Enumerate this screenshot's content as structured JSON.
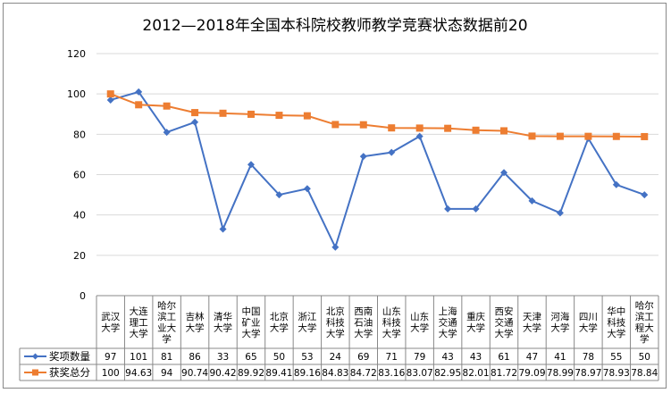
{
  "chart_data": {
    "type": "line",
    "title": "2012—2018年全国本科院校教师教学竞赛状态数据前20",
    "categories": [
      "武汉大学",
      "大连理工大学",
      "哈尔滨工业大学",
      "吉林大学",
      "清华大学",
      "中国矿业大学",
      "北京大学",
      "浙江大学",
      "北京科技大学",
      "西南石油大学",
      "山东科技大学",
      "山东大学",
      "上海交通大学",
      "重庆大学",
      "西安交通大学",
      "天津大学",
      "河海大学",
      "四川大学",
      "华中科技大学",
      "哈尔滨工程大学"
    ],
    "category_lines": [
      [
        "武汉",
        "大学"
      ],
      [
        "大连",
        "理工",
        "大学"
      ],
      [
        "哈尔",
        "滨工",
        "业大",
        "学"
      ],
      [
        "吉林",
        "大学"
      ],
      [
        "清华",
        "大学"
      ],
      [
        "中国",
        "矿业",
        "大学"
      ],
      [
        "北京",
        "大学"
      ],
      [
        "浙江",
        "大学"
      ],
      [
        "北京",
        "科技",
        "大学"
      ],
      [
        "西南",
        "石油",
        "大学"
      ],
      [
        "山东",
        "科技",
        "大学"
      ],
      [
        "山东",
        "大学"
      ],
      [
        "上海",
        "交通",
        "大学"
      ],
      [
        "重庆",
        "大学"
      ],
      [
        "西安",
        "交通",
        "大学"
      ],
      [
        "天津",
        "大学"
      ],
      [
        "河海",
        "大学"
      ],
      [
        "四川",
        "大学"
      ],
      [
        "华中",
        "科技",
        "大学"
      ],
      [
        "哈尔",
        "滨工",
        "程大",
        "学"
      ]
    ],
    "series": [
      {
        "name": "奖项数量",
        "color": "#4472C4",
        "marker": "diamond",
        "values": [
          97,
          101,
          81,
          86,
          33,
          65,
          50,
          53,
          24,
          69,
          71,
          79,
          43,
          43,
          61,
          47,
          41,
          78,
          55,
          50
        ]
      },
      {
        "name": "获奖总分",
        "color": "#ED7D31",
        "marker": "square",
        "values": [
          100,
          94.63,
          94,
          90.74,
          90.42,
          89.92,
          89.41,
          89.16,
          84.83,
          84.72,
          83.16,
          83.07,
          82.95,
          82.01,
          81.72,
          79.09,
          78.99,
          78.97,
          78.93,
          78.84
        ]
      }
    ],
    "ylim": [
      0,
      120
    ],
    "yticks": [
      0,
      20,
      40,
      60,
      80,
      100,
      120
    ],
    "grid": true,
    "legend": "data-table"
  }
}
